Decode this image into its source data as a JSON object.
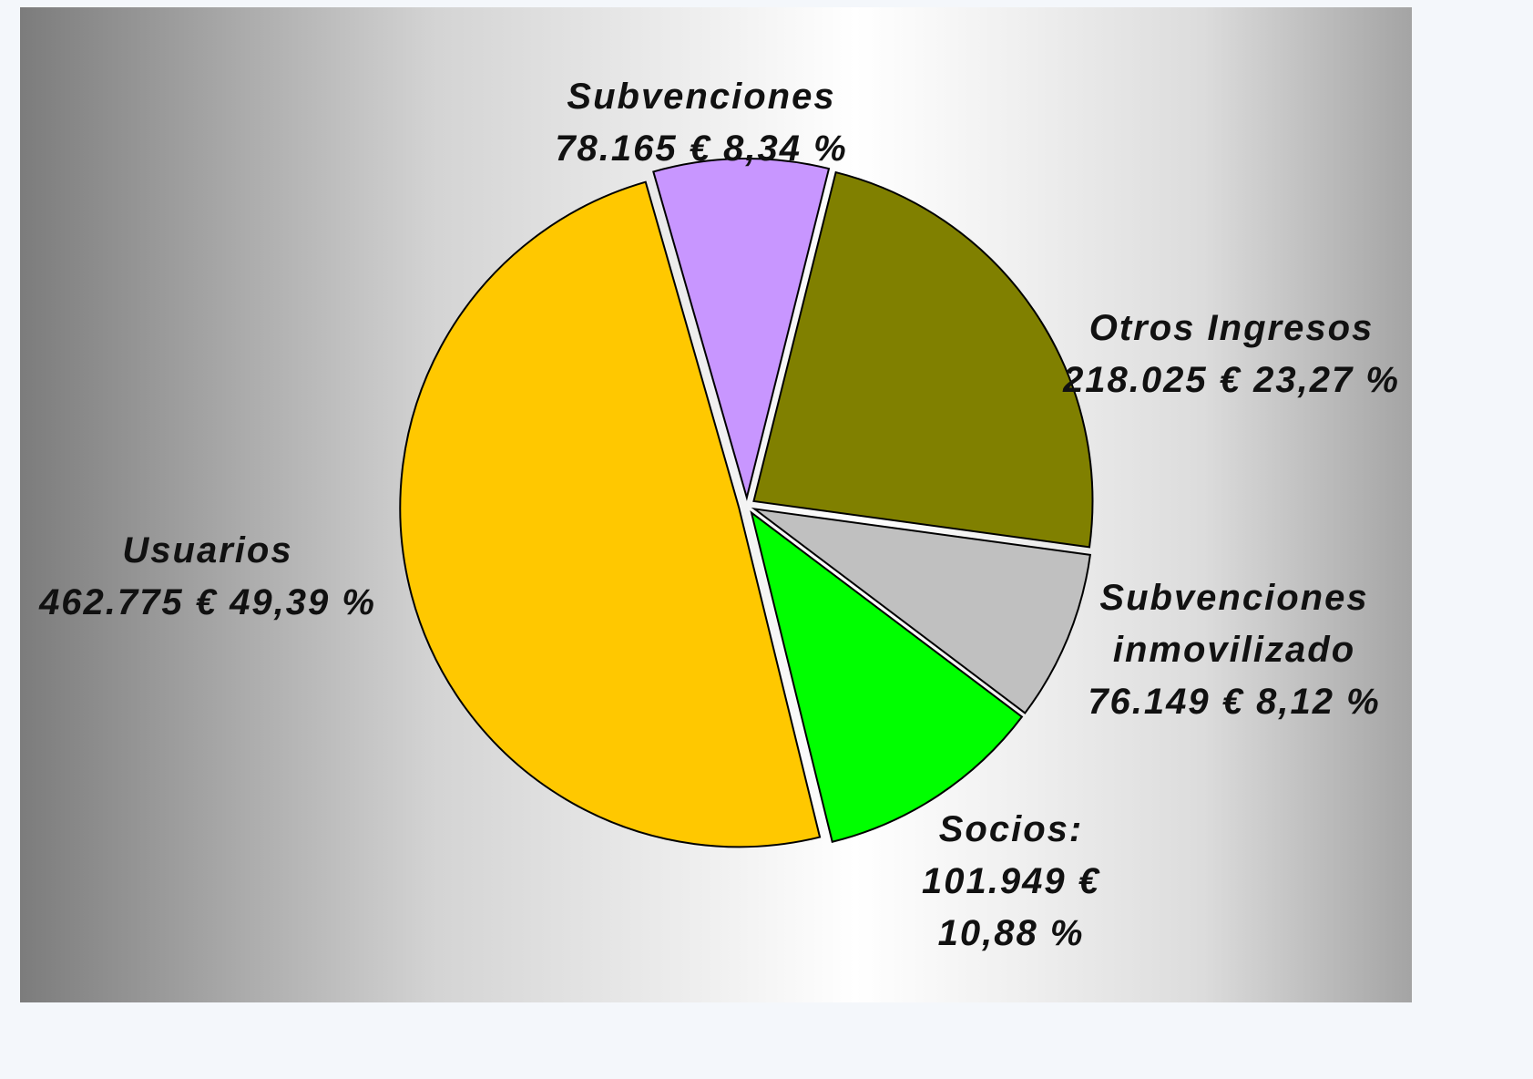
{
  "chart_data": {
    "type": "pie",
    "categories": [
      "Subvenciones",
      "Otros Ingresos",
      "Subvenciones inmovilizado",
      "Socios:",
      "Usuarios"
    ],
    "values": [
      8.34,
      23.27,
      8.12,
      10.88,
      49.39
    ],
    "value_labels": [
      "8,34 %",
      "23,27 %",
      "8,12 %",
      "10,88 %",
      "49,39 %"
    ],
    "amounts": [
      78165,
      218025,
      76149,
      101949,
      462775
    ],
    "amount_labels": [
      "78.165 €",
      "218.025 €",
      "76.149 €",
      "101.949 €",
      "462.775 €"
    ],
    "colors": [
      "#c896ff",
      "#808000",
      "#c0c0c0",
      "#00ff00",
      "#ffc800"
    ]
  }
}
